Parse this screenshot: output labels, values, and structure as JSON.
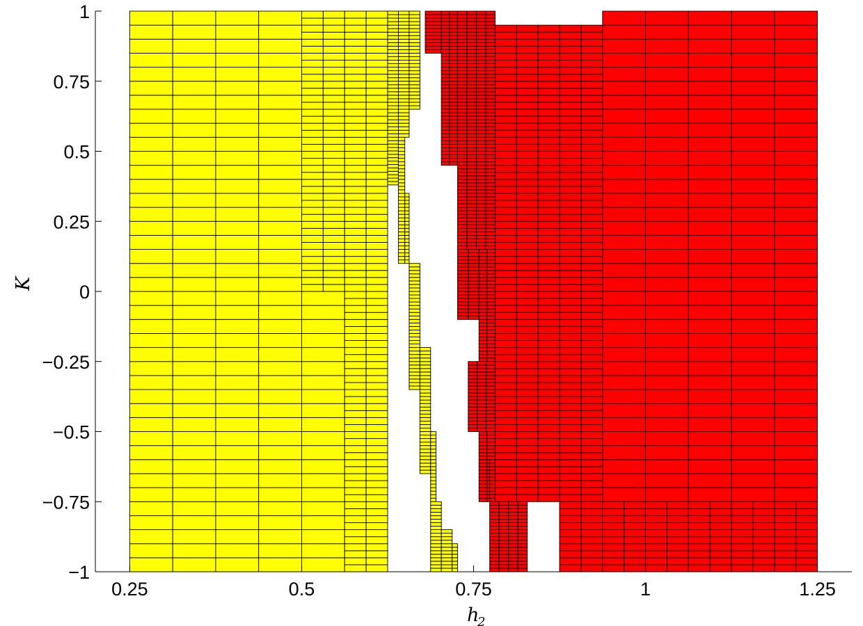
{
  "chart_data": {
    "type": "heatmap",
    "xlabel": "h",
    "xlabel_subscript": "2",
    "ylabel": "K",
    "xlim": [
      0.2,
      1.3
    ],
    "ylim": [
      -1,
      1
    ],
    "xticks": [
      0.25,
      0.5,
      0.75,
      1,
      1.25
    ],
    "xtick_labels": [
      "0.25",
      "0.5",
      "0.75",
      "1",
      "1.25"
    ],
    "yticks": [
      -1,
      -0.75,
      -0.5,
      -0.25,
      0,
      0.25,
      0.5,
      0.75,
      1
    ],
    "ytick_labels": [
      "−1",
      "−0.75",
      "−0.5",
      "−0.25",
      "0",
      "0.25",
      "0.5",
      "0.75",
      "1"
    ],
    "grid": false,
    "colors": {
      "yellow": "#ffff00",
      "red": "#ff0000",
      "edge": "#000000"
    },
    "regions": [
      {
        "color": "yellow",
        "dx": 0.0625,
        "dy": 0.05,
        "boxes": [
          [
            0.25,
            0.5,
            -1,
            1
          ],
          [
            0.5,
            0.5625,
            -1,
            0
          ]
        ]
      },
      {
        "color": "yellow",
        "dx": 0.03125,
        "dy": 0.025,
        "boxes": [
          [
            0.5,
            0.5625,
            0,
            1
          ],
          [
            0.5625,
            0.625,
            -1,
            1
          ]
        ]
      },
      {
        "color": "yellow",
        "dx": 0.015625,
        "dy": 0.0125,
        "boxes": [
          [
            0.625,
            0.6563,
            0.55,
            1
          ],
          [
            0.6563,
            0.6719,
            0.65,
            1
          ],
          [
            0.625,
            0.6406,
            0.38,
            0.55
          ],
          [
            0.6406,
            0.65,
            0.1,
            0.55
          ],
          [
            0.65,
            0.6563,
            0.1,
            0.35
          ],
          [
            0.6563,
            0.6719,
            -0.35,
            0.1
          ],
          [
            0.6719,
            0.6875,
            -0.65,
            -0.2
          ],
          [
            0.6875,
            0.6953,
            -0.75,
            -0.5
          ],
          [
            0.6875,
            0.7031,
            -1,
            -0.75
          ],
          [
            0.7031,
            0.7188,
            -1,
            -0.85
          ],
          [
            0.7188,
            0.7266,
            -1,
            -0.9
          ]
        ]
      },
      {
        "color": "red",
        "dx": 0.0625,
        "dy": 0.05,
        "boxes": [
          [
            0.9375,
            1.25,
            -0.75,
            1
          ],
          [
            1.0625,
            1.25,
            -0.75,
            -0.5
          ]
        ]
      },
      {
        "color": "red",
        "dx": 0.03125,
        "dy": 0.025,
        "boxes": [
          [
            0.7813,
            0.9375,
            -0.75,
            0.95
          ],
          [
            0.875,
            0.9375,
            -1,
            -0.75
          ],
          [
            0.9375,
            1.0625,
            -1,
            -0.75
          ],
          [
            1.0625,
            1.25,
            -1,
            -0.75
          ]
        ]
      },
      {
        "color": "red",
        "dx": 0.015625,
        "dy": 0.0125,
        "boxes": [
          [
            0.6797,
            0.7031,
            0.85,
            1
          ],
          [
            0.7031,
            0.7266,
            0.8,
            1
          ],
          [
            0.7266,
            0.7813,
            0.75,
            1
          ],
          [
            0.7031,
            0.7266,
            0.45,
            0.8
          ],
          [
            0.7266,
            0.7813,
            0.15,
            0.75
          ],
          [
            0.7266,
            0.7578,
            -0.1,
            0.15
          ],
          [
            0.7578,
            0.7813,
            -0.25,
            0.15
          ],
          [
            0.7422,
            0.7813,
            -0.5,
            -0.25
          ],
          [
            0.7578,
            0.7813,
            -0.75,
            -0.5
          ],
          [
            0.7734,
            0.8281,
            -1,
            -0.75
          ],
          [
            0.7734,
            0.7813,
            -0.75,
            -0.6
          ]
        ]
      }
    ]
  }
}
